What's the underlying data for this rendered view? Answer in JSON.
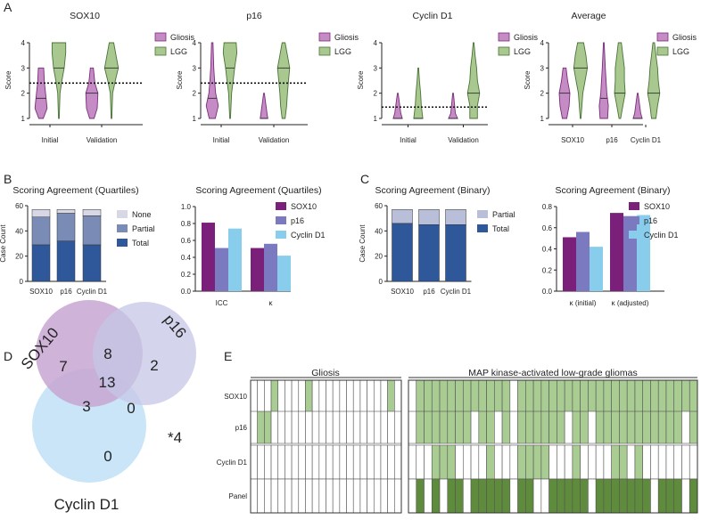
{
  "colors": {
    "gliosis": "#c48bc4",
    "gliosis_edge": "#7a2d7a",
    "lgg": "#a8c890",
    "lgg_edge": "#4a7336",
    "none": "#d7d7e6",
    "partial": "#7a8bb5",
    "total": "#2f589a",
    "partial_binary": "#b9bfd8",
    "sox10": "#7a1f7a",
    "p16": "#7b79c0",
    "cyclin": "#89cdec",
    "venn_sox10": "#c7a6d1",
    "venn_p16": "#c5c7e6",
    "venn_cyclin": "#c3e2f6",
    "grid_light": "#a9cc93",
    "grid_dark": "#5f8c3c"
  },
  "chart_data": [
    {
      "panel": "A",
      "type": "violin",
      "title": "SOX10",
      "ylabel": "Score",
      "ylim": [
        1,
        4
      ],
      "yticks": [
        1,
        2,
        3,
        4
      ],
      "categories": [
        "Initial",
        "Validation"
      ],
      "legend": [
        "Gliosis",
        "LGG"
      ],
      "threshold": 2.4,
      "series": [
        {
          "name": "Gliosis",
          "widths": [
            [
              [
                1,
                0.3
              ],
              [
                1.4,
                0.8
              ],
              [
                2,
                0.6
              ],
              [
                2.4,
                0.45
              ],
              [
                3,
                0.35
              ]
            ],
            [
              [
                1,
                0.3
              ],
              [
                1.4,
                0.7
              ],
              [
                2,
                0.8
              ],
              [
                2.4,
                0.4
              ],
              [
                3,
                0.2
              ]
            ]
          ],
          "median": [
            1.8,
            2.0
          ]
        },
        {
          "name": "LGG",
          "widths": [
            [
              [
                1,
                0.05
              ],
              [
                2,
                0.15
              ],
              [
                2.5,
                0.4
              ],
              [
                3,
                0.7
              ],
              [
                3.6,
                0.9
              ],
              [
                4,
                0.9
              ]
            ],
            [
              [
                1,
                0.05
              ],
              [
                2,
                0.15
              ],
              [
                2.5,
                0.5
              ],
              [
                3,
                0.9
              ],
              [
                3.5,
                0.6
              ],
              [
                4,
                0.3
              ]
            ]
          ],
          "median": [
            3.0,
            3.0
          ]
        }
      ]
    },
    {
      "panel": "A",
      "type": "violin",
      "title": "p16",
      "ylabel": "Score",
      "ylim": [
        1,
        4
      ],
      "yticks": [
        1,
        2,
        3,
        4
      ],
      "categories": [
        "Initial",
        "Validation"
      ],
      "legend": [
        "Gliosis",
        "LGG"
      ],
      "threshold": 2.4,
      "series": [
        {
          "name": "Gliosis",
          "widths": [
            [
              [
                1,
                0.4
              ],
              [
                1.5,
                0.8
              ],
              [
                2,
                0.45
              ],
              [
                2.5,
                0.3
              ],
              [
                3,
                0.2
              ],
              [
                4,
                0.1
              ]
            ],
            [
              [
                1,
                0.5
              ],
              [
                1.2,
                0.4
              ],
              [
                2,
                0.05
              ]
            ]
          ],
          "median": [
            1.8,
            1.0
          ]
        },
        {
          "name": "LGG",
          "widths": [
            [
              [
                1,
                0.05
              ],
              [
                2,
                0.2
              ],
              [
                2.6,
                0.45
              ],
              [
                3,
                0.6
              ],
              [
                3.6,
                0.9
              ],
              [
                4,
                0.8
              ]
            ],
            [
              [
                1,
                0.2
              ],
              [
                1.5,
                0.4
              ],
              [
                2,
                0.5
              ],
              [
                2.5,
                0.65
              ],
              [
                3,
                0.8
              ],
              [
                3.5,
                0.5
              ],
              [
                4,
                0.2
              ]
            ]
          ],
          "median": [
            3.0,
            3.0
          ]
        }
      ]
    },
    {
      "panel": "A",
      "type": "violin",
      "title": "Cyclin D1",
      "ylabel": "Score",
      "ylim": [
        1,
        4
      ],
      "yticks": [
        1,
        2,
        3,
        4
      ],
      "categories": [
        "Initial",
        "Validation"
      ],
      "legend": [
        "Gliosis",
        "LGG"
      ],
      "threshold": 1.45,
      "series": [
        {
          "name": "Gliosis",
          "widths": [
            [
              [
                1,
                0.6
              ],
              [
                1.2,
                0.4
              ],
              [
                2,
                0.05
              ]
            ],
            [
              [
                1,
                0.6
              ],
              [
                1.2,
                0.3
              ],
              [
                2,
                0.05
              ]
            ]
          ],
          "median": [
            1.0,
            1.0
          ]
        },
        {
          "name": "LGG",
          "widths": [
            [
              [
                1,
                0.6
              ],
              [
                1.5,
                0.4
              ],
              [
                2,
                0.3
              ],
              [
                2.5,
                0.15
              ],
              [
                3,
                0.05
              ]
            ],
            [
              [
                1,
                0.5
              ],
              [
                1.5,
                0.5
              ],
              [
                2,
                0.8
              ],
              [
                2.5,
                0.5
              ],
              [
                3,
                0.4
              ],
              [
                3.5,
                0.2
              ],
              [
                4,
                0.05
              ]
            ]
          ],
          "median": [
            1.0,
            2.0
          ]
        }
      ]
    },
    {
      "panel": "A",
      "type": "violin",
      "title": "Average",
      "ylabel": "Score",
      "ylim": [
        1,
        4
      ],
      "yticks": [
        1,
        2,
        3,
        4
      ],
      "categories": [
        "SOX10",
        "p16",
        "Cyclin D1"
      ],
      "legend": [
        "Gliosis",
        "LGG"
      ],
      "threshold": null,
      "series": [
        {
          "name": "Gliosis",
          "widths": [
            [
              [
                1,
                0.3
              ],
              [
                1.5,
                0.6
              ],
              [
                2,
                0.7
              ],
              [
                2.5,
                0.4
              ],
              [
                3,
                0.2
              ]
            ],
            [
              [
                1,
                0.5
              ],
              [
                1.5,
                0.6
              ],
              [
                2,
                0.4
              ],
              [
                3,
                0.2
              ],
              [
                4,
                0.05
              ]
            ],
            [
              [
                1,
                0.6
              ],
              [
                1.2,
                0.4
              ],
              [
                2,
                0.05
              ]
            ]
          ],
          "median": [
            2.0,
            1.8,
            1.0
          ]
        },
        {
          "name": "LGG",
          "widths": [
            [
              [
                1,
                0.05
              ],
              [
                2,
                0.3
              ],
              [
                2.5,
                0.6
              ],
              [
                3,
                0.9
              ],
              [
                3.5,
                0.7
              ],
              [
                4,
                0.4
              ]
            ],
            [
              [
                1,
                0.1
              ],
              [
                1.5,
                0.4
              ],
              [
                2,
                0.7
              ],
              [
                2.5,
                0.6
              ],
              [
                3,
                0.6
              ],
              [
                3.5,
                0.4
              ],
              [
                4,
                0.2
              ]
            ],
            [
              [
                1,
                0.3
              ],
              [
                1.5,
                0.5
              ],
              [
                2,
                0.8
              ],
              [
                2.5,
                0.6
              ],
              [
                3,
                0.5
              ],
              [
                3.5,
                0.3
              ],
              [
                4,
                0.1
              ]
            ]
          ],
          "median": [
            3.0,
            2.0,
            2.0
          ]
        }
      ]
    },
    {
      "panel": "B",
      "type": "bar",
      "stacked": true,
      "title": "Scoring Agreement (Quartiles)",
      "ylabel": "Case Count",
      "ylim": [
        0,
        60
      ],
      "yticks": [
        0,
        20,
        40,
        60
      ],
      "categories": [
        "SOX10",
        "p16",
        "Cyclin D1"
      ],
      "series": [
        {
          "name": "Total",
          "values": [
            29,
            32,
            29
          ]
        },
        {
          "name": "Partial",
          "values": [
            22,
            22,
            23
          ]
        },
        {
          "name": "None",
          "values": [
            6,
            3,
            5
          ]
        }
      ]
    },
    {
      "panel": "B",
      "type": "bar",
      "stacked": false,
      "title": "Scoring Agreement (Quartiles)",
      "ylabel": "",
      "ylim": [
        0,
        1.0
      ],
      "yticks": [
        "0.0",
        "0.2",
        "0.4",
        "0.6",
        "0.8",
        "1.0"
      ],
      "categories": [
        "ICC",
        "κ"
      ],
      "series": [
        {
          "name": "SOX10",
          "values": [
            0.81,
            0.51
          ]
        },
        {
          "name": "p16",
          "values": [
            0.51,
            0.56
          ]
        },
        {
          "name": "Cyclin D1",
          "values": [
            0.74,
            0.42
          ]
        }
      ]
    },
    {
      "panel": "C",
      "type": "bar",
      "stacked": true,
      "title": "Scoring Agreement (Binary)",
      "ylabel": "Case Count",
      "ylim": [
        0,
        60
      ],
      "yticks": [
        0,
        20,
        40,
        60
      ],
      "categories": [
        "SOX10",
        "p16",
        "Cyclin D1"
      ],
      "series": [
        {
          "name": "Total",
          "values": [
            46,
            45,
            45
          ]
        },
        {
          "name": "Partial",
          "values": [
            11,
            12,
            12
          ]
        }
      ]
    },
    {
      "panel": "C",
      "type": "bar",
      "stacked": false,
      "title": "Scoring Agreement (Binary)",
      "ylabel": "",
      "ylim": [
        0,
        0.8
      ],
      "yticks": [
        "0.0",
        "0.2",
        "0.4",
        "0.6",
        "0.8"
      ],
      "categories": [
        "κ (initial)",
        "κ (adjusted)"
      ],
      "series": [
        {
          "name": "SOX10",
          "values": [
            0.51,
            0.74
          ]
        },
        {
          "name": "p16",
          "values": [
            0.56,
            0.71
          ]
        },
        {
          "name": "Cyclin D1",
          "values": [
            0.42,
            0.72
          ]
        }
      ]
    },
    {
      "panel": "D",
      "type": "venn",
      "sets": [
        "SOX10",
        "p16",
        "Cyclin D1"
      ],
      "regions": {
        "sox10_only": "7",
        "p16_only": "2",
        "cyclin_only": "0",
        "sox10_p16": "8",
        "sox10_cyclin": "3",
        "p16_cyclin": "0",
        "all": "13"
      },
      "outside": "*4"
    },
    {
      "panel": "E",
      "type": "heatmap",
      "groups": [
        "Gliosis",
        "MAP kinase-activated low-grade gliomas"
      ],
      "rows": [
        "SOX10",
        "p16",
        "Cyclin D1",
        "Panel"
      ],
      "gliosis": [
        "0001000010000000000010",
        "0110000000000000000000",
        "0000000000000000000000",
        "0000000000000000000000"
      ],
      "lgg": [
        "0111111111111011111111111111111111111",
        "0111111101101011111101101111111111101",
        "0001110000100011110001000011010000000",
        "0101011011111011001111101111111011101"
      ]
    }
  ],
  "panel_labels": [
    "A",
    "B",
    "C",
    "D",
    "E"
  ]
}
